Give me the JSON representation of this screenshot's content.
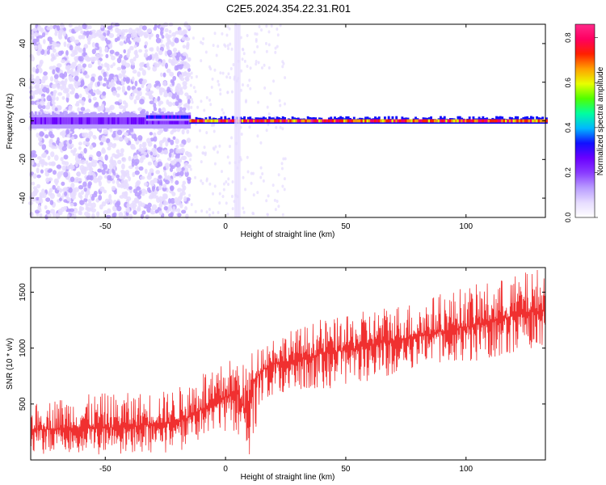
{
  "title": "C2E5.2024.354.22.31.R01",
  "colors": {
    "snr_line": "#f03030",
    "colorbar_stops": [
      "#ffffff",
      "#e6dcff",
      "#b99cff",
      "#8a3cff",
      "#6a00ff",
      "#1010ff",
      "#00b8ff",
      "#00ffa0",
      "#50ff00",
      "#e8ff00",
      "#ffa000",
      "#ff2000",
      "#ff0060",
      "#ff2a8a"
    ]
  },
  "chart_data": [
    {
      "type": "heatmap",
      "xlabel": "Height of straight line (km)",
      "ylabel": "Frequency (Hz)",
      "xlim": [
        -81,
        133
      ],
      "ylim": [
        -50,
        50
      ],
      "xticks": [
        -50,
        0,
        50,
        100
      ],
      "yticks": [
        -40,
        -20,
        0,
        20,
        40
      ],
      "grid": false,
      "colorbar": {
        "label": "Normalized spectral amplitude",
        "range": [
          0,
          0.86
        ],
        "ticks": [
          "0.0",
          "0.2",
          "0.4",
          "0.6",
          "0.8"
        ]
      },
      "features": [
        {
          "x_range": [
            -81,
            -15
          ],
          "freq_center": 0,
          "half_width_hz": 4,
          "amplitude": 0.25
        },
        {
          "x_range": [
            -33,
            -15
          ],
          "freq_center": 2,
          "half_width_hz": 2,
          "amplitude": 0.35
        },
        {
          "x_range": [
            -15,
            133
          ],
          "freq_center": 0,
          "half_width_hz": 1.5,
          "amplitude": 0.8
        },
        {
          "x_range": [
            4,
            6
          ],
          "freq_center": 0,
          "half_width_hz": 50,
          "amplitude": 0.08
        }
      ]
    },
    {
      "type": "line",
      "xlabel": "Height of straight line (km)",
      "ylabel": "SNR (10 * v/v)",
      "xlim": [
        -81,
        133
      ],
      "ylim": [
        0,
        1720
      ],
      "xticks": [
        -50,
        0,
        50,
        100
      ],
      "yticks": [
        500,
        1000,
        1500
      ],
      "grid": false,
      "series": [
        {
          "x": [
            -80,
            -70,
            -60,
            -50,
            -40,
            -30,
            -25,
            -20,
            -15,
            -10,
            -5,
            0,
            5,
            8,
            10,
            12,
            15,
            20,
            30,
            40,
            50,
            60,
            70,
            80,
            90,
            100,
            110,
            120,
            130
          ],
          "y_min": [
            40,
            40,
            50,
            40,
            50,
            60,
            60,
            80,
            100,
            150,
            200,
            240,
            250,
            40,
            10,
            200,
            500,
            550,
            600,
            630,
            650,
            700,
            750,
            800,
            850,
            870,
            900,
            950,
            1000
          ],
          "y_max": [
            500,
            560,
            580,
            600,
            600,
            620,
            620,
            650,
            700,
            850,
            780,
            900,
            920,
            850,
            960,
            1000,
            1050,
            1120,
            1180,
            1260,
            1280,
            1350,
            1400,
            1420,
            1500,
            1550,
            1600,
            1650,
            1720
          ],
          "y_mean": [
            270,
            280,
            290,
            290,
            300,
            320,
            330,
            350,
            380,
            450,
            470,
            560,
            600,
            450,
            520,
            700,
            800,
            860,
            900,
            950,
            980,
            1030,
            1070,
            1100,
            1150,
            1190,
            1230,
            1290,
            1330
          ]
        }
      ]
    }
  ]
}
